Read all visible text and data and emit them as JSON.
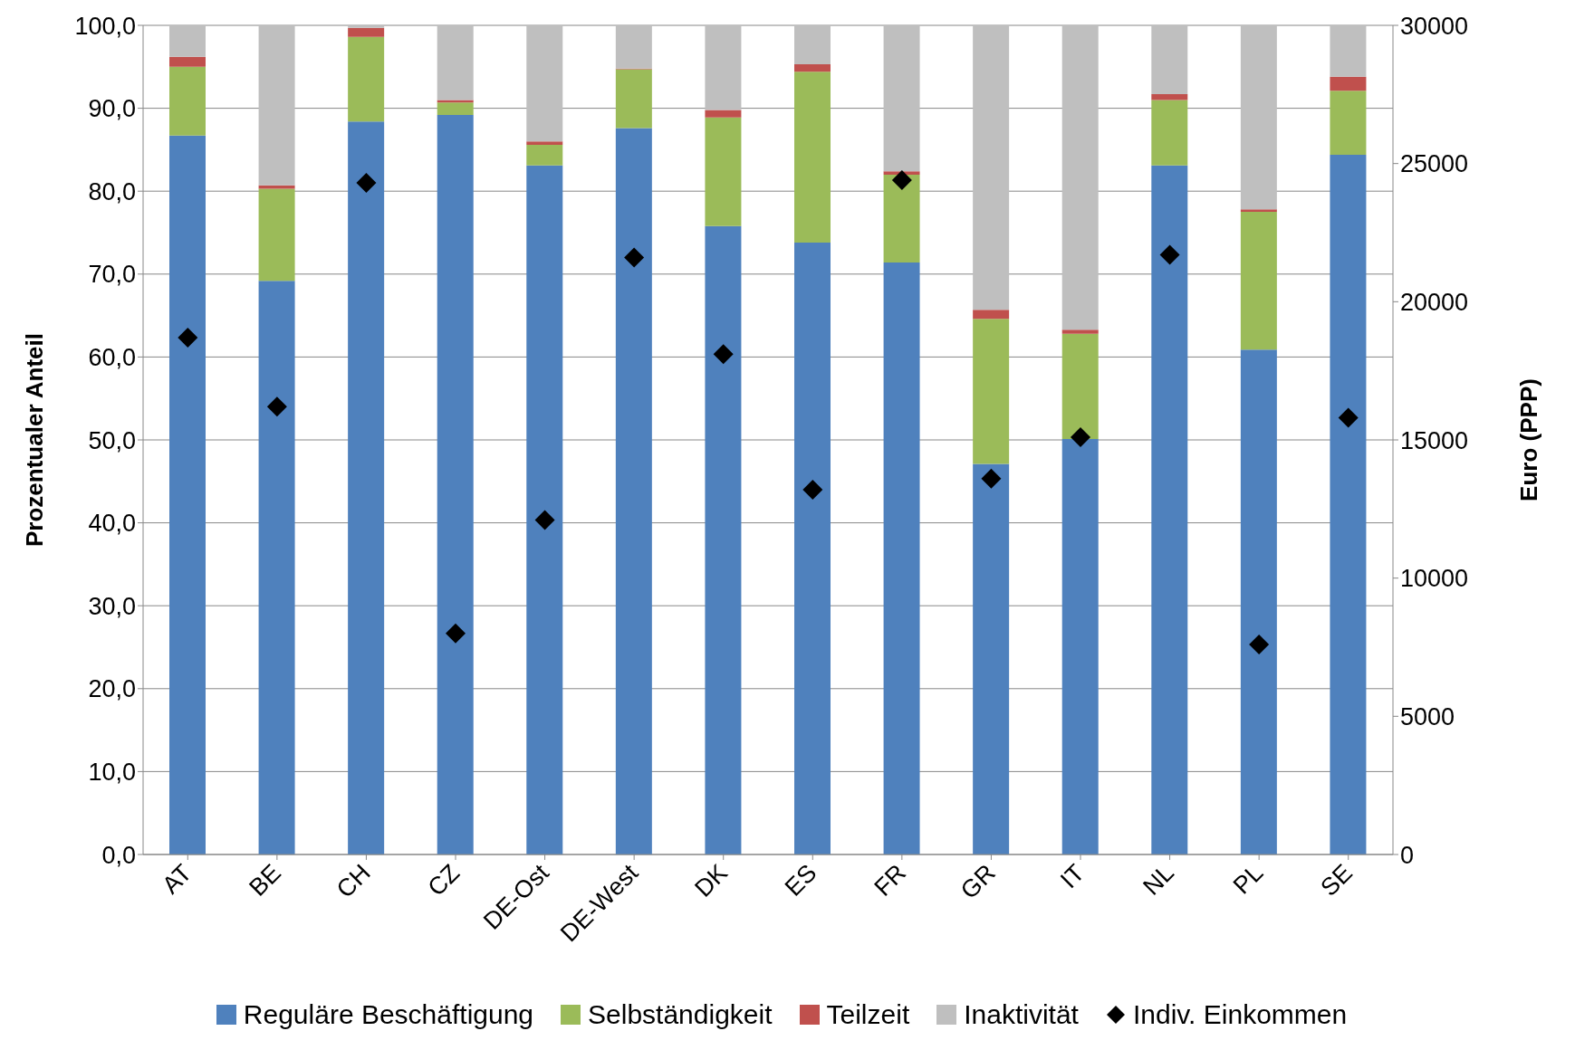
{
  "chart_data": {
    "type": "bar",
    "stacked": true,
    "ylabel": "Prozentualer Anteil",
    "y2label": "Euro (PPP)",
    "categories": [
      "AT",
      "BE",
      "CH",
      "CZ",
      "DE-Ost",
      "DE-West",
      "DK",
      "ES",
      "FR",
      "GR",
      "IT",
      "NL",
      "PL",
      "SE"
    ],
    "series": [
      {
        "name": "Reguläre Beschäftigung",
        "color": "#4f81bd",
        "values": [
          86.7,
          69.2,
          88.4,
          89.2,
          83.1,
          87.6,
          75.8,
          73.8,
          71.4,
          47.1,
          50.1,
          83.1,
          60.9,
          84.4
        ]
      },
      {
        "name": "Selbständigkeit",
        "color": "#9bbb59",
        "values": [
          8.3,
          11.1,
          10.2,
          1.5,
          2.5,
          7.1,
          13.1,
          20.6,
          10.6,
          17.5,
          12.7,
          7.9,
          16.6,
          7.7
        ]
      },
      {
        "name": "Teilzeit",
        "color": "#c0504d",
        "values": [
          1.2,
          0.4,
          1.1,
          0.3,
          0.4,
          0.1,
          0.9,
          0.9,
          0.4,
          1.1,
          0.5,
          0.7,
          0.3,
          1.7
        ]
      },
      {
        "name": "Inaktivität",
        "color": "#bfbfbf",
        "values": [
          3.8,
          19.3,
          0.3,
          9.0,
          14.0,
          5.2,
          10.2,
          4.7,
          17.6,
          34.3,
          36.7,
          8.3,
          22.2,
          6.2
        ]
      },
      {
        "name": "Indiv. Einkommen",
        "color": "#000000",
        "type": "scatter",
        "axis": "y2",
        "marker": "diamond",
        "values": [
          18700,
          16200,
          24300,
          8000,
          12100,
          21600,
          18100,
          13200,
          24400,
          13600,
          15100,
          21700,
          7600,
          15800
        ]
      }
    ],
    "ylim": [
      0,
      100
    ],
    "yticks": [
      {
        "value": 0,
        "label": "0,0"
      },
      {
        "value": 10,
        "label": "10,0"
      },
      {
        "value": 20,
        "label": "20,0"
      },
      {
        "value": 30,
        "label": "30,0"
      },
      {
        "value": 40,
        "label": "40,0"
      },
      {
        "value": 50,
        "label": "50,0"
      },
      {
        "value": 60,
        "label": "60,0"
      },
      {
        "value": 70,
        "label": "70,0"
      },
      {
        "value": 80,
        "label": "80,0"
      },
      {
        "value": 90,
        "label": "90,0"
      },
      {
        "value": 100,
        "label": "100,0"
      }
    ],
    "y2lim": [
      0,
      30000
    ],
    "y2ticks": [
      0,
      5000,
      10000,
      15000,
      20000,
      25000,
      30000
    ],
    "grid": "y",
    "legend": "bottom"
  }
}
